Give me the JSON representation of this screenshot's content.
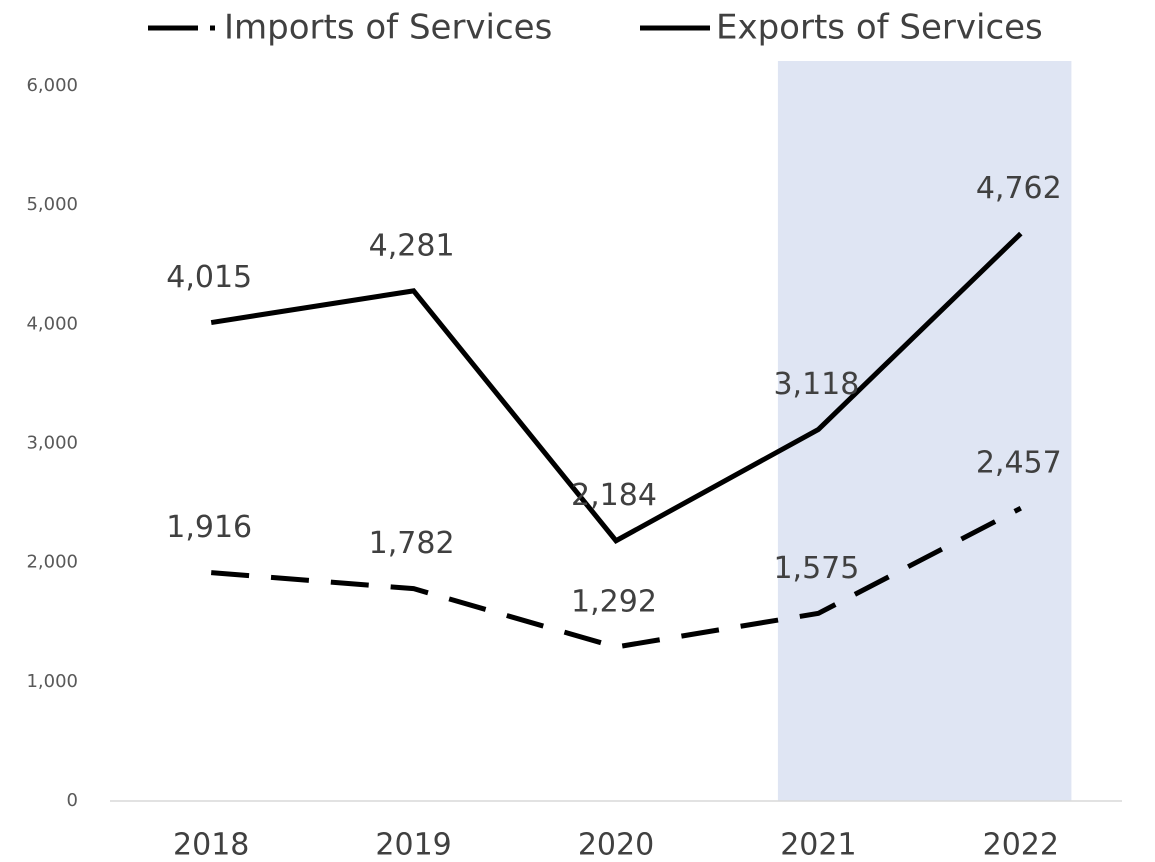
{
  "chart_data": {
    "type": "line",
    "categories": [
      "2018",
      "2019",
      "2020",
      "2021",
      "2022"
    ],
    "series": [
      {
        "name": "Imports of Services",
        "color": "#000000",
        "dash": "dashed",
        "values": [
          1916,
          1782,
          1292,
          1575,
          2457
        ],
        "value_labels": [
          "1,916",
          "1,782",
          "1,292",
          "1,575",
          "2,457"
        ]
      },
      {
        "name": "Exports of Services",
        "color": "#000000",
        "dash": "solid",
        "values": [
          4015,
          4281,
          2184,
          3118,
          4762
        ],
        "value_labels": [
          "4,015",
          "4,281",
          "2,184",
          "3,118",
          "4,762"
        ]
      }
    ],
    "ylim": [
      0,
      6000
    ],
    "yticks": [
      0,
      {
        "value": 1000,
        "label": "1,000"
      },
      {
        "value": 2000,
        "label": "2,000"
      },
      {
        "value": 3000,
        "label": "3,000"
      },
      {
        "value": 4000,
        "label": "4,000"
      },
      {
        "value": 5000,
        "label": "5,000"
      },
      {
        "value": 6000,
        "label": "6,000"
      }
    ],
    "grid": false,
    "legend": "top",
    "shaded": {
      "from": "2021",
      "to": "2022",
      "color": "#dfe5f3"
    }
  }
}
